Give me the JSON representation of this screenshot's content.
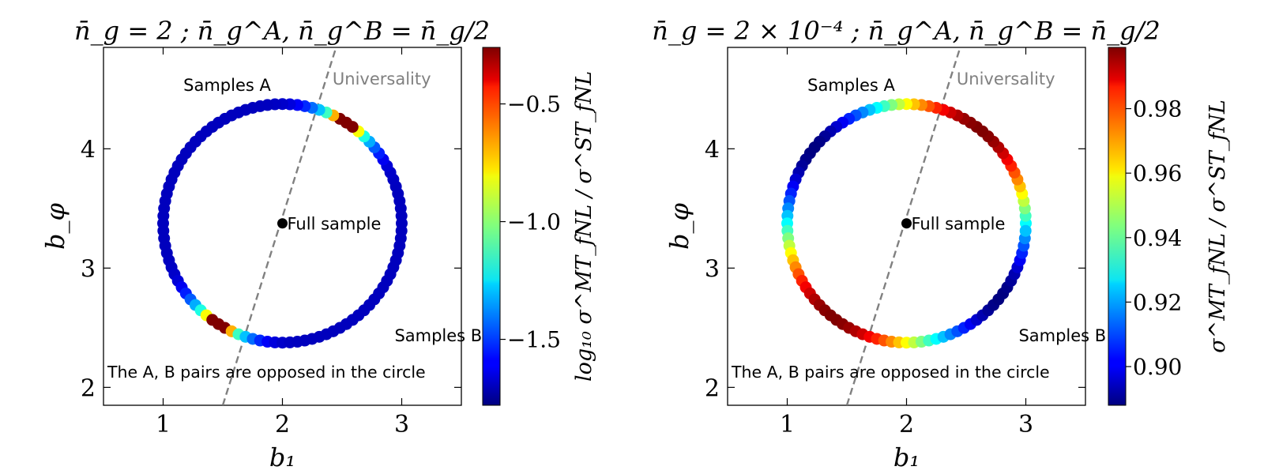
{
  "chart_data": [
    {
      "type": "scatter",
      "title": "n̄_g = 2 ; n̄_g^A, n̄_g^B = n̄_g/2",
      "xlabel": "b₁",
      "ylabel": "b_φ",
      "xlim": [
        0.5,
        3.5
      ],
      "ylim": [
        1.85,
        4.85
      ],
      "xticks": [
        1,
        2,
        3
      ],
      "xtick_labels": [
        "1",
        "2",
        "3"
      ],
      "yticks": [
        2,
        3,
        4
      ],
      "ytick_labels": [
        "2",
        "3",
        "4"
      ],
      "grid": false,
      "circle": {
        "center": [
          2.0,
          3.375
        ],
        "radius": 1.0,
        "n_points": 100
      },
      "full_sample": {
        "x": 2.0,
        "y": 3.375,
        "label": "Full sample"
      },
      "universality_line": {
        "x": [
          1.5,
          2.45
        ],
        "y": [
          1.85,
          4.85
        ],
        "label": "Universality"
      },
      "annotations": {
        "samples_a": "Samples A",
        "samples_b": "Samples B",
        "pairs_note": "The A, B pairs are opposed in the circle"
      },
      "colorbar": {
        "label": "log₁₀ σ^MT_fNL / σ^ST_fNL",
        "range": [
          -1.78,
          -0.26
        ],
        "ticks": [
          -0.5,
          -1.0,
          -1.5
        ],
        "tick_labels": [
          "−0.5",
          "−1.0",
          "−1.5"
        ]
      },
      "series_shape": "narrow peak of color value near the angle where the circle crosses the universality line; low (blue) elsewhere"
    },
    {
      "type": "scatter",
      "title": "n̄_g = 2 × 10⁻⁴ ; n̄_g^A, n̄_g^B = n̄_g/2",
      "xlabel": "b₁",
      "ylabel": "b_φ",
      "xlim": [
        0.5,
        3.5
      ],
      "ylim": [
        1.85,
        4.85
      ],
      "xticks": [
        1,
        2,
        3
      ],
      "xtick_labels": [
        "1",
        "2",
        "3"
      ],
      "yticks": [
        2,
        3,
        4
      ],
      "ytick_labels": [
        "2",
        "3",
        "4"
      ],
      "grid": false,
      "circle": {
        "center": [
          2.0,
          3.375
        ],
        "radius": 1.0,
        "n_points": 100
      },
      "full_sample": {
        "x": 2.0,
        "y": 3.375,
        "label": "Full sample"
      },
      "universality_line": {
        "x": [
          1.5,
          2.45
        ],
        "y": [
          1.85,
          4.85
        ],
        "label": "Universality"
      },
      "annotations": {
        "samples_a": "Samples A",
        "samples_b": "Samples B",
        "pairs_note": "The A, B pairs are opposed in the circle"
      },
      "colorbar": {
        "label": "σ^MT_fNL / σ^ST_fNL",
        "range": [
          0.888,
          0.999
        ],
        "ticks": [
          0.9,
          0.92,
          0.94,
          0.96,
          0.98
        ],
        "tick_labels": [
          "0.90",
          "0.92",
          "0.94",
          "0.96",
          "0.98"
        ]
      },
      "series_shape": "broad variation: max (~0.999) on upper-right and lower-left arcs, min (~0.888) on upper-left and lower-right arcs"
    }
  ]
}
